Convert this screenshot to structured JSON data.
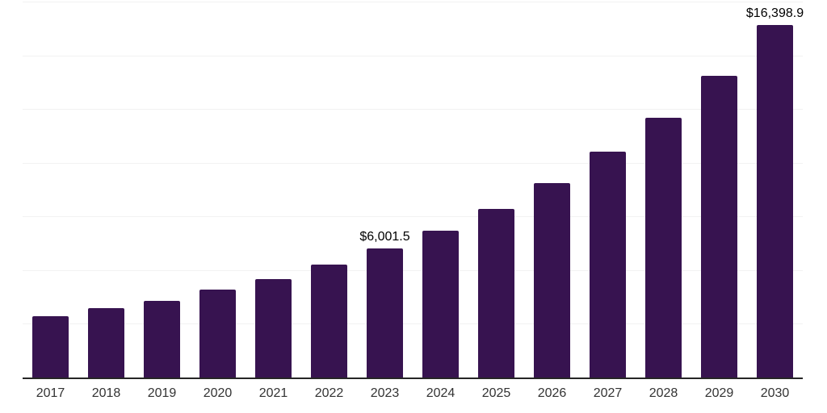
{
  "chart_data": {
    "type": "bar",
    "title": "",
    "xlabel": "",
    "ylabel": "",
    "categories": [
      "2017",
      "2018",
      "2019",
      "2020",
      "2021",
      "2022",
      "2023",
      "2024",
      "2025",
      "2026",
      "2027",
      "2028",
      "2029",
      "2030"
    ],
    "values": [
      2865,
      3240,
      3550,
      4110,
      4600,
      5255,
      6001.5,
      6830,
      7850,
      9050,
      10500,
      12110,
      14060,
      16398.9
    ],
    "point_labels": {
      "2023": "$6,001.5",
      "2030": "$16,398.9"
    },
    "ylim": [
      0,
      17500
    ],
    "gridline_values": [
      2500,
      5000,
      7500,
      10000,
      12500,
      15000,
      17500
    ],
    "grid": true,
    "legend": false,
    "y_tick_labels_visible": false,
    "colors": {
      "bar": "#371350",
      "axis_line": "#262626",
      "gridline": "#f2f2f2",
      "value_label": "#000000",
      "tick_label": "#333333",
      "background": "#ffffff"
    }
  }
}
